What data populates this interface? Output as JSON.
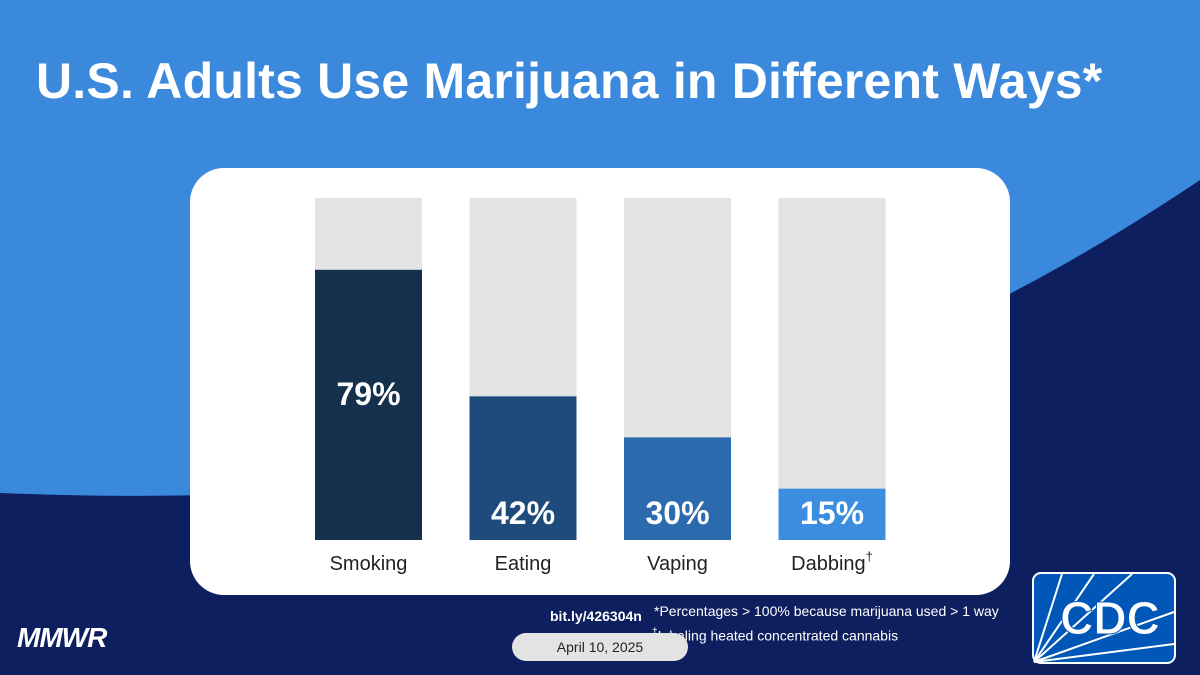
{
  "title": "U.S. Adults Use Marijuana in Different Ways*",
  "chart_data": {
    "type": "bar",
    "categories": [
      "Smoking",
      "Eating",
      "Vaping",
      "Dabbing"
    ],
    "category_marks": [
      "",
      "",
      "",
      "†"
    ],
    "values": [
      79,
      42,
      30,
      15
    ],
    "value_labels": [
      "79%",
      "42%",
      "30%",
      "15%"
    ],
    "ylim": [
      0,
      100
    ],
    "colors": [
      "#15304d",
      "#1f4a7c",
      "#2b6aad",
      "#3b8de0"
    ],
    "track_color": "#e3e3e3",
    "grid": false
  },
  "footer": {
    "brand": "MMWR",
    "link": "bit.ly/426304n",
    "note1": "*Percentages > 100% because marijuana used > 1 way",
    "note2_mark": "†",
    "note2": "Inhaling heated concentrated cannabis",
    "date": "April 10, 2025",
    "logo": "CDC"
  },
  "colors": {
    "background": "#3a89dd",
    "navy": "#0e1f60",
    "logo_blue": "#0057b8"
  }
}
